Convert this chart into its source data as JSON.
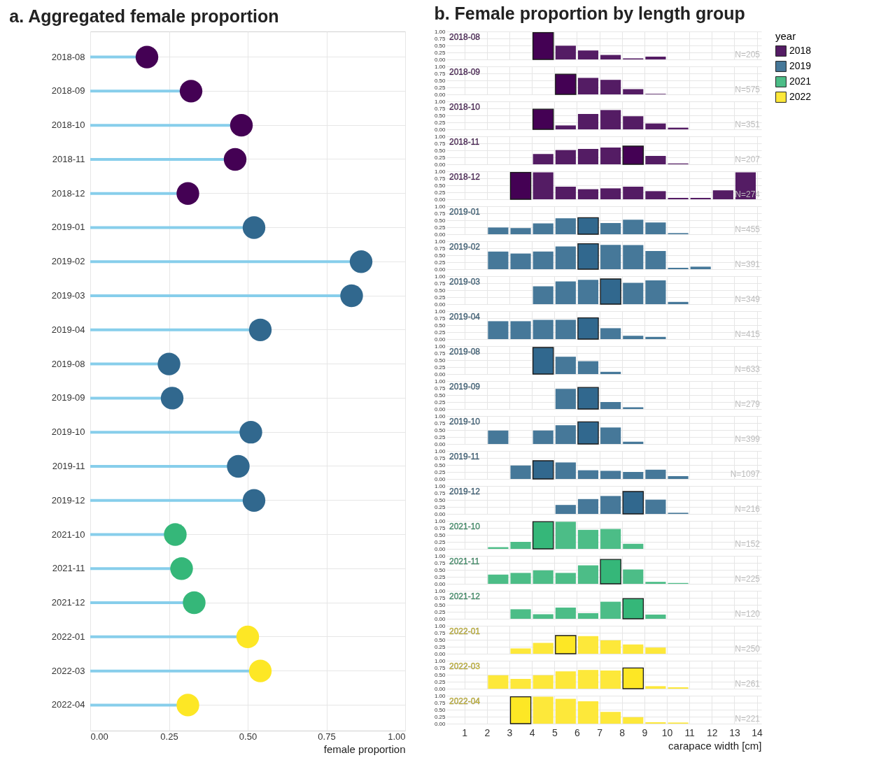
{
  "chart_data": [
    {
      "type": "lollipop",
      "title": "a. Aggregated female proportion",
      "orientation": "horizontal",
      "categories": [
        "2018-08",
        "2018-09",
        "2018-10",
        "2018-11",
        "2018-12",
        "2019-01",
        "2019-02",
        "2019-03",
        "2019-04",
        "2019-08",
        "2019-09",
        "2019-10",
        "2019-11",
        "2019-12",
        "2021-10",
        "2021-11",
        "2021-12",
        "2022-01",
        "2022-03",
        "2022-04"
      ],
      "series": [
        {
          "color": "#87ceeb",
          "values": [
            0.18,
            0.32,
            0.48,
            0.46,
            0.31,
            0.52,
            0.86,
            0.83,
            0.54,
            0.25,
            0.26,
            0.51,
            0.47,
            0.52,
            0.27,
            0.29,
            0.33,
            0.5,
            0.54,
            0.31
          ],
          "colors": [
            "#440154",
            "#440154",
            "#440154",
            "#440154",
            "#440154",
            "#31688e",
            "#31688e",
            "#31688e",
            "#31688e",
            "#31688e",
            "#31688e",
            "#31688e",
            "#31688e",
            "#31688e",
            "#35b779",
            "#35b779",
            "#35b779",
            "#fde725",
            "#fde725",
            "#fde725"
          ]
        }
      ],
      "xlim": [
        0,
        1
      ],
      "xticks": [
        {
          "value": 0,
          "label": "0.00"
        },
        {
          "value": 0.25,
          "label": "0.25"
        },
        {
          "value": 0.5,
          "label": "0.50"
        },
        {
          "value": 0.75,
          "label": "0.75"
        },
        {
          "value": 1,
          "label": "1.00"
        }
      ],
      "xlabel": "female proportion",
      "grid": true,
      "marker": "circle"
    },
    {
      "type": "histogram",
      "title": "b. Female proportion by length group",
      "subtitle": "2018-08",
      "bins": [
        2,
        3,
        4,
        5,
        6,
        7,
        8,
        9,
        10,
        11,
        12,
        13,
        14
      ],
      "series": [
        {
          "name": "2018",
          "color": "#541c64",
          "values": [
            null,
            null,
            0.96,
            0.49,
            0.32,
            0.16,
            0.04,
            0.1,
            null,
            null,
            null,
            null
          ],
          "colors": [
            null,
            null,
            "#440154",
            "#541c64",
            "#541c64",
            "#541c64",
            "#541c64",
            "#541c64",
            null,
            null,
            null,
            null
          ]
        }
      ],
      "xlim": [
        0.2,
        14.2
      ],
      "xticks": [
        1,
        2,
        3,
        4,
        5,
        6,
        7,
        8,
        9,
        10,
        11,
        12,
        13,
        14
      ],
      "ylim": [
        0,
        1
      ],
      "yticks": [
        {
          "value": 0,
          "label": "0.00"
        },
        {
          "value": 0.25,
          "label": "0.25"
        },
        {
          "value": 0.5,
          "label": "0.50"
        },
        {
          "value": 0.75,
          "label": "0.75"
        },
        {
          "value": 1,
          "label": "1.00"
        }
      ],
      "grid": true,
      "tick_labels": "y",
      "annotations": [
        "N=205"
      ],
      "legend_title": "year",
      "legend": "right"
    },
    {
      "type": "histogram",
      "subtitle": "2018-09",
      "bins": [
        2,
        3,
        4,
        5,
        6,
        7,
        8,
        9,
        10,
        11,
        12,
        13,
        14
      ],
      "series": [
        {
          "color": "#541c64",
          "values": [
            null,
            null,
            null,
            0.72,
            0.59,
            0.52,
            0.19,
            0.02,
            null,
            null,
            null,
            null
          ],
          "colors": [
            null,
            null,
            null,
            "#440154",
            "#541c64",
            "#541c64",
            "#541c64",
            "#541c64",
            null,
            null,
            null,
            null
          ]
        }
      ],
      "xlim": [
        0.2,
        14.2
      ],
      "xticks": [
        1,
        2,
        3,
        4,
        5,
        6,
        7,
        8,
        9,
        10,
        11,
        12,
        13,
        14
      ],
      "ylim": [
        0,
        1
      ],
      "yticks": [
        {
          "value": 0,
          "label": "0.00"
        },
        {
          "value": 0.25,
          "label": "0.25"
        },
        {
          "value": 0.5,
          "label": "0.50"
        },
        {
          "value": 0.75,
          "label": "0.75"
        },
        {
          "value": 1,
          "label": "1.00"
        }
      ],
      "grid": true,
      "tick_labels": "y",
      "annotations": [
        "N=575"
      ]
    },
    {
      "type": "histogram",
      "subtitle": "2018-10",
      "bins": [
        2,
        3,
        4,
        5,
        6,
        7,
        8,
        9,
        10,
        11,
        12,
        13,
        14
      ],
      "series": [
        {
          "color": "#541c64",
          "values": [
            null,
            null,
            0.72,
            0.14,
            0.55,
            0.69,
            0.47,
            0.21,
            0.06,
            null,
            null,
            null
          ],
          "colors": [
            null,
            null,
            "#440154",
            "#541c64",
            "#541c64",
            "#541c64",
            "#541c64",
            "#541c64",
            "#541c64",
            null,
            null,
            null
          ]
        }
      ],
      "xlim": [
        0.2,
        14.2
      ],
      "xticks": [
        1,
        2,
        3,
        4,
        5,
        6,
        7,
        8,
        9,
        10,
        11,
        12,
        13,
        14
      ],
      "ylim": [
        0,
        1
      ],
      "yticks": [
        {
          "value": 0,
          "label": "0.00"
        },
        {
          "value": 0.25,
          "label": "0.25"
        },
        {
          "value": 0.5,
          "label": "0.50"
        },
        {
          "value": 0.75,
          "label": "0.75"
        },
        {
          "value": 1,
          "label": "1.00"
        }
      ],
      "grid": true,
      "tick_labels": "y",
      "annotations": [
        "N=351"
      ]
    },
    {
      "type": "histogram",
      "subtitle": "2018-11",
      "bins": [
        2,
        3,
        4,
        5,
        6,
        7,
        8,
        9,
        10,
        11,
        12,
        13,
        14
      ],
      "series": [
        {
          "color": "#541c64",
          "values": [
            null,
            null,
            0.37,
            0.51,
            0.55,
            0.6,
            0.65,
            0.3,
            0.03,
            null,
            null,
            null
          ],
          "colors": [
            null,
            null,
            "#541c64",
            "#541c64",
            "#541c64",
            "#541c64",
            "#440154",
            "#541c64",
            "#541c64",
            null,
            null,
            null
          ]
        }
      ],
      "xlim": [
        0.2,
        14.2
      ],
      "xticks": [
        1,
        2,
        3,
        4,
        5,
        6,
        7,
        8,
        9,
        10,
        11,
        12,
        13,
        14
      ],
      "ylim": [
        0,
        1
      ],
      "yticks": [
        {
          "value": 0,
          "label": "0.00"
        },
        {
          "value": 0.25,
          "label": "0.25"
        },
        {
          "value": 0.5,
          "label": "0.50"
        },
        {
          "value": 0.75,
          "label": "0.75"
        },
        {
          "value": 1,
          "label": "1.00"
        }
      ],
      "grid": true,
      "tick_labels": "y",
      "annotations": [
        "N=207"
      ]
    },
    {
      "type": "histogram",
      "subtitle": "2018-12",
      "bins": [
        2,
        3,
        4,
        5,
        6,
        7,
        8,
        9,
        10,
        11,
        12,
        13,
        14
      ],
      "series": [
        {
          "color": "#541c64",
          "values": [
            null,
            0.96,
            0.96,
            0.45,
            0.36,
            0.39,
            0.45,
            0.29,
            0.05,
            0.05,
            0.32,
            0.96
          ],
          "colors": [
            null,
            "#440154",
            "#541c64",
            "#541c64",
            "#541c64",
            "#541c64",
            "#541c64",
            "#541c64",
            "#541c64",
            "#541c64",
            "#541c64",
            "#541c64"
          ]
        }
      ],
      "xlim": [
        0.2,
        14.2
      ],
      "xticks": [
        1,
        2,
        3,
        4,
        5,
        6,
        7,
        8,
        9,
        10,
        11,
        12,
        13,
        14
      ],
      "ylim": [
        0,
        1
      ],
      "yticks": [
        {
          "value": 0,
          "label": "0.00"
        },
        {
          "value": 0.25,
          "label": "0.25"
        },
        {
          "value": 0.5,
          "label": "0.50"
        },
        {
          "value": 0.75,
          "label": "0.75"
        },
        {
          "value": 1,
          "label": "1.00"
        }
      ],
      "grid": true,
      "tick_labels": "y",
      "annotations": [
        "N=274"
      ]
    },
    {
      "type": "histogram",
      "subtitle": "2019-01",
      "bins": [
        2,
        3,
        4,
        5,
        6,
        7,
        8,
        9,
        10,
        11,
        12,
        13,
        14
      ],
      "series": [
        {
          "name": "2019",
          "color": "#467899",
          "values": [
            0.24,
            0.22,
            0.39,
            0.57,
            0.59,
            0.4,
            0.52,
            0.42,
            0.04,
            null,
            null,
            null
          ],
          "colors": [
            "#467899",
            "#467899",
            "#467899",
            "#467899",
            "#31688e",
            "#467899",
            "#467899",
            "#467899",
            "#467899",
            null,
            null,
            null
          ]
        }
      ],
      "xlim": [
        0.2,
        14.2
      ],
      "xticks": [
        1,
        2,
        3,
        4,
        5,
        6,
        7,
        8,
        9,
        10,
        11,
        12,
        13,
        14
      ],
      "ylim": [
        0,
        1
      ],
      "yticks": [
        {
          "value": 0,
          "label": "0.00"
        },
        {
          "value": 0.25,
          "label": "0.25"
        },
        {
          "value": 0.5,
          "label": "0.50"
        },
        {
          "value": 0.75,
          "label": "0.75"
        },
        {
          "value": 1,
          "label": "1.00"
        }
      ],
      "grid": true,
      "tick_labels": "y",
      "annotations": [
        "N=455"
      ]
    },
    {
      "type": "histogram",
      "subtitle": "2019-02",
      "bins": [
        2,
        3,
        4,
        5,
        6,
        7,
        8,
        9,
        10,
        11,
        12,
        13,
        14
      ],
      "series": [
        {
          "color": "#467899",
          "values": [
            0.63,
            0.56,
            0.63,
            0.81,
            0.91,
            0.87,
            0.86,
            0.65,
            0.05,
            0.09,
            null,
            null
          ],
          "colors": [
            "#467899",
            "#467899",
            "#467899",
            "#467899",
            "#31688e",
            "#467899",
            "#467899",
            "#467899",
            "#467899",
            "#467899",
            null,
            null
          ]
        }
      ],
      "xlim": [
        0.2,
        14.2
      ],
      "xticks": [
        1,
        2,
        3,
        4,
        5,
        6,
        7,
        8,
        9,
        10,
        11,
        12,
        13,
        14
      ],
      "ylim": [
        0,
        1
      ],
      "yticks": [
        {
          "value": 0,
          "label": "0.00"
        },
        {
          "value": 0.25,
          "label": "0.25"
        },
        {
          "value": 0.5,
          "label": "0.50"
        },
        {
          "value": 0.75,
          "label": "0.75"
        },
        {
          "value": 1,
          "label": "1.00"
        }
      ],
      "grid": true,
      "tick_labels": "y",
      "annotations": [
        "N=391"
      ]
    },
    {
      "type": "histogram",
      "subtitle": "2019-03",
      "bins": [
        2,
        3,
        4,
        5,
        6,
        7,
        8,
        9,
        10,
        11,
        12,
        13,
        14
      ],
      "series": [
        {
          "color": "#467899",
          "values": [
            null,
            null,
            0.64,
            0.81,
            0.87,
            0.9,
            0.76,
            0.85,
            0.08,
            null,
            null,
            null
          ],
          "colors": [
            null,
            null,
            "#467899",
            "#467899",
            "#467899",
            "#31688e",
            "#467899",
            "#467899",
            "#467899",
            null,
            null,
            null
          ]
        }
      ],
      "xlim": [
        0.2,
        14.2
      ],
      "xticks": [
        1,
        2,
        3,
        4,
        5,
        6,
        7,
        8,
        9,
        10,
        11,
        12,
        13,
        14
      ],
      "ylim": [
        0,
        1
      ],
      "yticks": [
        {
          "value": 0,
          "label": "0.00"
        },
        {
          "value": 0.25,
          "label": "0.25"
        },
        {
          "value": 0.5,
          "label": "0.50"
        },
        {
          "value": 0.75,
          "label": "0.75"
        },
        {
          "value": 1,
          "label": "1.00"
        }
      ],
      "grid": true,
      "tick_labels": "y",
      "annotations": [
        "N=349"
      ]
    },
    {
      "type": "histogram",
      "subtitle": "2019-04",
      "bins": [
        2,
        3,
        4,
        5,
        6,
        7,
        8,
        9,
        10,
        11,
        12,
        13,
        14
      ],
      "series": [
        {
          "color": "#467899",
          "values": [
            0.64,
            0.64,
            0.69,
            0.69,
            0.76,
            0.39,
            0.12,
            0.08,
            null,
            null,
            null,
            null
          ],
          "colors": [
            "#467899",
            "#467899",
            "#467899",
            "#467899",
            "#31688e",
            "#467899",
            "#467899",
            "#467899",
            null,
            null,
            null,
            null
          ]
        }
      ],
      "xlim": [
        0.2,
        14.2
      ],
      "xticks": [
        1,
        2,
        3,
        4,
        5,
        6,
        7,
        8,
        9,
        10,
        11,
        12,
        13,
        14
      ],
      "ylim": [
        0,
        1
      ],
      "yticks": [
        {
          "value": 0,
          "label": "0.00"
        },
        {
          "value": 0.25,
          "label": "0.25"
        },
        {
          "value": 0.5,
          "label": "0.50"
        },
        {
          "value": 0.75,
          "label": "0.75"
        },
        {
          "value": 1,
          "label": "1.00"
        }
      ],
      "grid": true,
      "tick_labels": "y",
      "annotations": [
        "N=415"
      ]
    },
    {
      "type": "histogram",
      "subtitle": "2019-08",
      "bins": [
        2,
        3,
        4,
        5,
        6,
        7,
        8,
        9,
        10,
        11,
        12,
        13,
        14
      ],
      "series": [
        {
          "color": "#467899",
          "values": [
            null,
            null,
            0.95,
            0.62,
            0.46,
            0.08,
            null,
            null,
            null,
            null,
            null,
            null
          ],
          "colors": [
            null,
            null,
            "#31688e",
            "#467899",
            "#467899",
            "#467899",
            null,
            null,
            null,
            null,
            null,
            null
          ]
        }
      ],
      "xlim": [
        0.2,
        14.2
      ],
      "xticks": [
        1,
        2,
        3,
        4,
        5,
        6,
        7,
        8,
        9,
        10,
        11,
        12,
        13,
        14
      ],
      "ylim": [
        0,
        1
      ],
      "yticks": [
        {
          "value": 0,
          "label": "0.00"
        },
        {
          "value": 0.25,
          "label": "0.25"
        },
        {
          "value": 0.5,
          "label": "0.50"
        },
        {
          "value": 0.75,
          "label": "0.75"
        },
        {
          "value": 1,
          "label": "1.00"
        }
      ],
      "grid": true,
      "tick_labels": "y",
      "annotations": [
        "N=633"
      ]
    },
    {
      "type": "histogram",
      "subtitle": "2019-09",
      "bins": [
        2,
        3,
        4,
        5,
        6,
        7,
        8,
        9,
        10,
        11,
        12,
        13,
        14
      ],
      "series": [
        {
          "color": "#467899",
          "values": [
            null,
            null,
            null,
            0.72,
            0.77,
            0.25,
            0.06,
            null,
            null,
            null,
            null,
            null
          ],
          "colors": [
            null,
            null,
            null,
            "#467899",
            "#31688e",
            "#467899",
            "#467899",
            null,
            null,
            null,
            null,
            null
          ]
        }
      ],
      "xlim": [
        0.2,
        14.2
      ],
      "xticks": [
        1,
        2,
        3,
        4,
        5,
        6,
        7,
        8,
        9,
        10,
        11,
        12,
        13,
        14
      ],
      "ylim": [
        0,
        1
      ],
      "yticks": [
        {
          "value": 0,
          "label": "0.00"
        },
        {
          "value": 0.25,
          "label": "0.25"
        },
        {
          "value": 0.5,
          "label": "0.50"
        },
        {
          "value": 0.75,
          "label": "0.75"
        },
        {
          "value": 1,
          "label": "1.00"
        }
      ],
      "grid": true,
      "tick_labels": "y",
      "annotations": [
        "N=279"
      ]
    },
    {
      "type": "histogram",
      "subtitle": "2019-10",
      "bins": [
        2,
        3,
        4,
        5,
        6,
        7,
        8,
        9,
        10,
        11,
        12,
        13,
        14
      ],
      "series": [
        {
          "color": "#467899",
          "values": [
            0.48,
            null,
            0.48,
            0.67,
            0.79,
            0.59,
            0.08,
            null,
            null,
            null,
            null,
            null
          ],
          "colors": [
            "#467899",
            null,
            "#467899",
            "#467899",
            "#31688e",
            "#467899",
            "#467899",
            null,
            null,
            null,
            null,
            null
          ]
        }
      ],
      "xlim": [
        0.2,
        14.2
      ],
      "xticks": [
        1,
        2,
        3,
        4,
        5,
        6,
        7,
        8,
        9,
        10,
        11,
        12,
        13,
        14
      ],
      "ylim": [
        0,
        1
      ],
      "yticks": [
        {
          "value": 0,
          "label": "0.00"
        },
        {
          "value": 0.25,
          "label": "0.25"
        },
        {
          "value": 0.5,
          "label": "0.50"
        },
        {
          "value": 0.75,
          "label": "0.75"
        },
        {
          "value": 1,
          "label": "1.00"
        }
      ],
      "grid": true,
      "tick_labels": "y",
      "annotations": [
        "N=399"
      ]
    },
    {
      "type": "histogram",
      "subtitle": "2019-11",
      "bins": [
        2,
        3,
        4,
        5,
        6,
        7,
        8,
        9,
        10,
        11,
        12,
        13,
        14
      ],
      "series": [
        {
          "color": "#467899",
          "values": [
            null,
            0.48,
            0.65,
            0.59,
            0.31,
            0.29,
            0.25,
            0.33,
            0.1,
            null,
            null,
            null
          ],
          "colors": [
            null,
            "#467899",
            "#31688e",
            "#467899",
            "#467899",
            "#467899",
            "#467899",
            "#467899",
            "#467899",
            null,
            null,
            null
          ]
        }
      ],
      "xlim": [
        0.2,
        14.2
      ],
      "xticks": [
        1,
        2,
        3,
        4,
        5,
        6,
        7,
        8,
        9,
        10,
        11,
        12,
        13,
        14
      ],
      "ylim": [
        0,
        1
      ],
      "yticks": [
        {
          "value": 0,
          "label": "0.00"
        },
        {
          "value": 0.25,
          "label": "0.25"
        },
        {
          "value": 0.5,
          "label": "0.50"
        },
        {
          "value": 0.75,
          "label": "0.75"
        },
        {
          "value": 1,
          "label": "1.00"
        }
      ],
      "grid": true,
      "tick_labels": "y",
      "annotations": [
        "N=1097"
      ]
    },
    {
      "type": "histogram",
      "subtitle": "2019-12",
      "bins": [
        2,
        3,
        4,
        5,
        6,
        7,
        8,
        9,
        10,
        11,
        12,
        13,
        14
      ],
      "series": [
        {
          "color": "#467899",
          "values": [
            null,
            null,
            null,
            0.32,
            0.53,
            0.64,
            0.8,
            0.51,
            0.04,
            null,
            null,
            null
          ],
          "colors": [
            null,
            null,
            null,
            "#467899",
            "#467899",
            "#467899",
            "#31688e",
            "#467899",
            "#467899",
            null,
            null,
            null
          ]
        }
      ],
      "xlim": [
        0.2,
        14.2
      ],
      "xticks": [
        1,
        2,
        3,
        4,
        5,
        6,
        7,
        8,
        9,
        10,
        11,
        12,
        13,
        14
      ],
      "ylim": [
        0,
        1
      ],
      "yticks": [
        {
          "value": 0,
          "label": "0.00"
        },
        {
          "value": 0.25,
          "label": "0.25"
        },
        {
          "value": 0.5,
          "label": "0.50"
        },
        {
          "value": 0.75,
          "label": "0.75"
        },
        {
          "value": 1,
          "label": "1.00"
        }
      ],
      "grid": true,
      "tick_labels": "y",
      "annotations": [
        "N=216"
      ]
    },
    {
      "type": "histogram",
      "subtitle": "2021-10",
      "bins": [
        2,
        3,
        4,
        5,
        6,
        7,
        8,
        9,
        10,
        11,
        12,
        13,
        14
      ],
      "series": [
        {
          "name": "2021",
          "color": "#4cbd87",
          "values": [
            0.06,
            0.25,
            0.97,
            0.97,
            0.68,
            0.71,
            0.18,
            null,
            null,
            null,
            null,
            null
          ],
          "colors": [
            "#4cbd87",
            "#4cbd87",
            "#35b779",
            "#4cbd87",
            "#4cbd87",
            "#4cbd87",
            "#4cbd87",
            null,
            null,
            null,
            null,
            null
          ]
        }
      ],
      "xlim": [
        0.2,
        14.2
      ],
      "xticks": [
        1,
        2,
        3,
        4,
        5,
        6,
        7,
        8,
        9,
        10,
        11,
        12,
        13,
        14
      ],
      "ylim": [
        0,
        1
      ],
      "yticks": [
        {
          "value": 0,
          "label": "0.00"
        },
        {
          "value": 0.25,
          "label": "0.25"
        },
        {
          "value": 0.5,
          "label": "0.50"
        },
        {
          "value": 0.75,
          "label": "0.75"
        },
        {
          "value": 1,
          "label": "1.00"
        }
      ],
      "grid": true,
      "tick_labels": "y",
      "annotations": [
        "N=152"
      ]
    },
    {
      "type": "histogram",
      "subtitle": "2021-11",
      "bins": [
        2,
        3,
        4,
        5,
        6,
        7,
        8,
        9,
        10,
        11,
        12,
        13,
        14
      ],
      "series": [
        {
          "color": "#4cbd87",
          "values": [
            0.33,
            0.39,
            0.48,
            0.39,
            0.66,
            0.87,
            0.51,
            0.07,
            0.03,
            null,
            null,
            null
          ],
          "colors": [
            "#4cbd87",
            "#4cbd87",
            "#4cbd87",
            "#4cbd87",
            "#4cbd87",
            "#35b779",
            "#4cbd87",
            "#4cbd87",
            "#4cbd87",
            null,
            null,
            null
          ]
        }
      ],
      "xlim": [
        0.2,
        14.2
      ],
      "xticks": [
        1,
        2,
        3,
        4,
        5,
        6,
        7,
        8,
        9,
        10,
        11,
        12,
        13,
        14
      ],
      "ylim": [
        0,
        1
      ],
      "yticks": [
        {
          "value": 0,
          "label": "0.00"
        },
        {
          "value": 0.25,
          "label": "0.25"
        },
        {
          "value": 0.5,
          "label": "0.50"
        },
        {
          "value": 0.75,
          "label": "0.75"
        },
        {
          "value": 1,
          "label": "1.00"
        }
      ],
      "grid": true,
      "tick_labels": "y",
      "annotations": [
        "N=225"
      ]
    },
    {
      "type": "histogram",
      "subtitle": "2021-12",
      "bins": [
        2,
        3,
        4,
        5,
        6,
        7,
        8,
        9,
        10,
        11,
        12,
        13,
        14
      ],
      "series": [
        {
          "color": "#4cbd87",
          "values": [
            null,
            0.34,
            0.16,
            0.4,
            0.2,
            0.61,
            0.72,
            0.15,
            null,
            null,
            null,
            null
          ],
          "colors": [
            null,
            "#4cbd87",
            "#4cbd87",
            "#4cbd87",
            "#4cbd87",
            "#4cbd87",
            "#35b779",
            "#4cbd87",
            null,
            null,
            null,
            null
          ]
        }
      ],
      "xlim": [
        0.2,
        14.2
      ],
      "xticks": [
        1,
        2,
        3,
        4,
        5,
        6,
        7,
        8,
        9,
        10,
        11,
        12,
        13,
        14
      ],
      "ylim": [
        0,
        1
      ],
      "yticks": [
        {
          "value": 0,
          "label": "0.00"
        },
        {
          "value": 0.25,
          "label": "0.25"
        },
        {
          "value": 0.5,
          "label": "0.50"
        },
        {
          "value": 0.75,
          "label": "0.75"
        },
        {
          "value": 1,
          "label": "1.00"
        }
      ],
      "grid": true,
      "tick_labels": "y",
      "annotations": [
        "N=120"
      ]
    },
    {
      "type": "histogram",
      "subtitle": "2022-01",
      "bins": [
        2,
        3,
        4,
        5,
        6,
        7,
        8,
        9,
        10,
        11,
        12,
        13,
        14
      ],
      "series": [
        {
          "name": "2022",
          "color": "#fde83a",
          "values": [
            null,
            0.19,
            0.39,
            0.65,
            0.63,
            0.48,
            0.33,
            0.22,
            null,
            null,
            null,
            null
          ],
          "colors": [
            null,
            "#fde83a",
            "#fde83a",
            "#fde725",
            "#fde83a",
            "#fde83a",
            "#fde83a",
            "#fde83a",
            null,
            null,
            null,
            null
          ]
        }
      ],
      "xlim": [
        0.2,
        14.2
      ],
      "xticks": [
        1,
        2,
        3,
        4,
        5,
        6,
        7,
        8,
        9,
        10,
        11,
        12,
        13,
        14
      ],
      "ylim": [
        0,
        1
      ],
      "yticks": [
        {
          "value": 0,
          "label": "0.00"
        },
        {
          "value": 0.25,
          "label": "0.25"
        },
        {
          "value": 0.5,
          "label": "0.50"
        },
        {
          "value": 0.75,
          "label": "0.75"
        },
        {
          "value": 1,
          "label": "1.00"
        }
      ],
      "grid": true,
      "tick_labels": "y",
      "annotations": [
        "N=250"
      ]
    },
    {
      "type": "histogram",
      "subtitle": "2022-03",
      "bins": [
        2,
        3,
        4,
        5,
        6,
        7,
        8,
        9,
        10,
        11,
        12,
        13,
        14
      ],
      "series": [
        {
          "color": "#fde83a",
          "values": [
            0.48,
            0.35,
            0.48,
            0.62,
            0.67,
            0.65,
            0.74,
            0.09,
            0.05,
            null,
            null,
            null
          ],
          "colors": [
            "#fde83a",
            "#fde83a",
            "#fde83a",
            "#fde83a",
            "#fde83a",
            "#fde83a",
            "#fde725",
            "#fde83a",
            "#fde83a",
            null,
            null,
            null
          ]
        }
      ],
      "xlim": [
        0.2,
        14.2
      ],
      "xticks": [
        1,
        2,
        3,
        4,
        5,
        6,
        7,
        8,
        9,
        10,
        11,
        12,
        13,
        14
      ],
      "ylim": [
        0,
        1
      ],
      "yticks": [
        {
          "value": 0,
          "label": "0.00"
        },
        {
          "value": 0.25,
          "label": "0.25"
        },
        {
          "value": 0.5,
          "label": "0.50"
        },
        {
          "value": 0.75,
          "label": "0.75"
        },
        {
          "value": 1,
          "label": "1.00"
        }
      ],
      "grid": true,
      "tick_labels": "y",
      "annotations": [
        "N=261"
      ]
    },
    {
      "type": "histogram",
      "subtitle": "2022-04",
      "bins": [
        2,
        3,
        4,
        5,
        6,
        7,
        8,
        9,
        10,
        11,
        12,
        13,
        14
      ],
      "series": [
        {
          "color": "#fde83a",
          "values": [
            null,
            0.96,
            0.96,
            0.89,
            0.8,
            0.42,
            0.23,
            0.05,
            0.04,
            null,
            null,
            null
          ],
          "colors": [
            null,
            "#fde725",
            "#fde83a",
            "#fde83a",
            "#fde83a",
            "#fde83a",
            "#fde83a",
            "#fde83a",
            "#fde83a",
            null,
            null,
            null
          ]
        }
      ],
      "xlim": [
        0.2,
        14.2
      ],
      "xticks": [
        1,
        2,
        3,
        4,
        5,
        6,
        7,
        8,
        9,
        10,
        11,
        12,
        13,
        14
      ],
      "ylim": [
        0,
        1
      ],
      "yticks": [
        {
          "value": 0,
          "label": "0.00"
        },
        {
          "value": 0.25,
          "label": "0.25"
        },
        {
          "value": 0.5,
          "label": "0.50"
        },
        {
          "value": 0.75,
          "label": "0.75"
        },
        {
          "value": 1,
          "label": "1.00"
        }
      ],
      "grid": true,
      "xlabel": "carapace width [cm]",
      "annotations": [
        "N=221"
      ]
    }
  ]
}
